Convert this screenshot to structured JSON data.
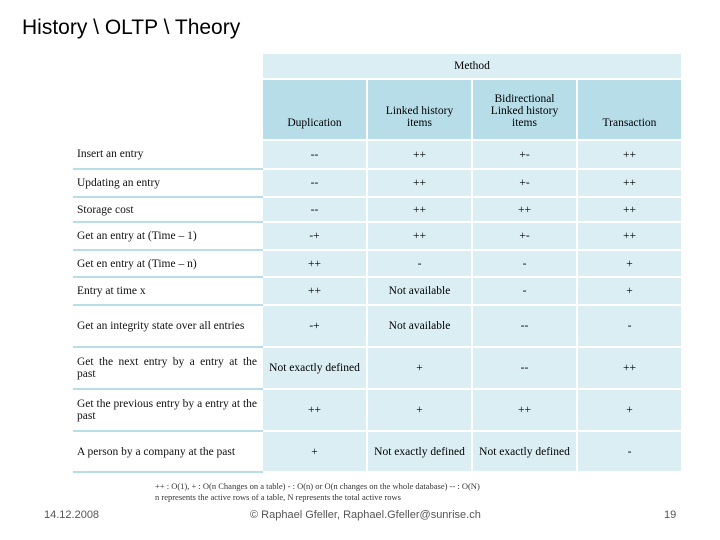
{
  "header": {
    "title": "History \\ OLTP \\ Theory"
  },
  "table": {
    "group_header": "Method",
    "columns": [
      "Duplication",
      "Linked history items",
      "Bidirectional Linked history items",
      "Transaction"
    ],
    "rows": [
      {
        "label": "Insert an entry",
        "cells": [
          "--",
          "++",
          "+-",
          "++"
        ]
      },
      {
        "label": "Updating an entry",
        "cells": [
          "--",
          "++",
          "+-",
          "++"
        ]
      },
      {
        "label": "Storage cost",
        "cells": [
          "--",
          "++",
          "++",
          "++"
        ]
      },
      {
        "label": "Get an entry at (Time – 1)",
        "cells": [
          "-+",
          "++",
          "+-",
          "++"
        ]
      },
      {
        "label": "Get en entry at (Time – n)",
        "cells": [
          "++",
          "-",
          "-",
          "+"
        ]
      },
      {
        "label": "Entry at time x",
        "cells": [
          "++",
          "Not available",
          "-",
          "+"
        ]
      },
      {
        "label": "Get an integrity state over all entries",
        "cells": [
          "-+",
          "Not available",
          "--",
          "-"
        ]
      },
      {
        "label": "Get the next entry by a entry at the past",
        "cells": [
          "Not exactly defined",
          "+",
          "--",
          "++"
        ]
      },
      {
        "label": "Get the previous entry by a entry at the past",
        "cells": [
          "++",
          "+",
          "++",
          "+"
        ]
      },
      {
        "label": "A person by a company at the past",
        "cells": [
          "+",
          "Not exactly defined",
          "Not exactly defined",
          "-"
        ]
      }
    ],
    "notes": [
      "++ : O(1), + : O(n Changes on a table) - : O(n) or O(n changes on the whole database) -- : O(N)",
      "n represents the active rows of a table, N represents the total active rows"
    ]
  },
  "footer": {
    "date": "14.12.2008",
    "author": "© Raphael Gfeller, Raphael.Gfeller@sunrise.ch",
    "page": "19"
  }
}
